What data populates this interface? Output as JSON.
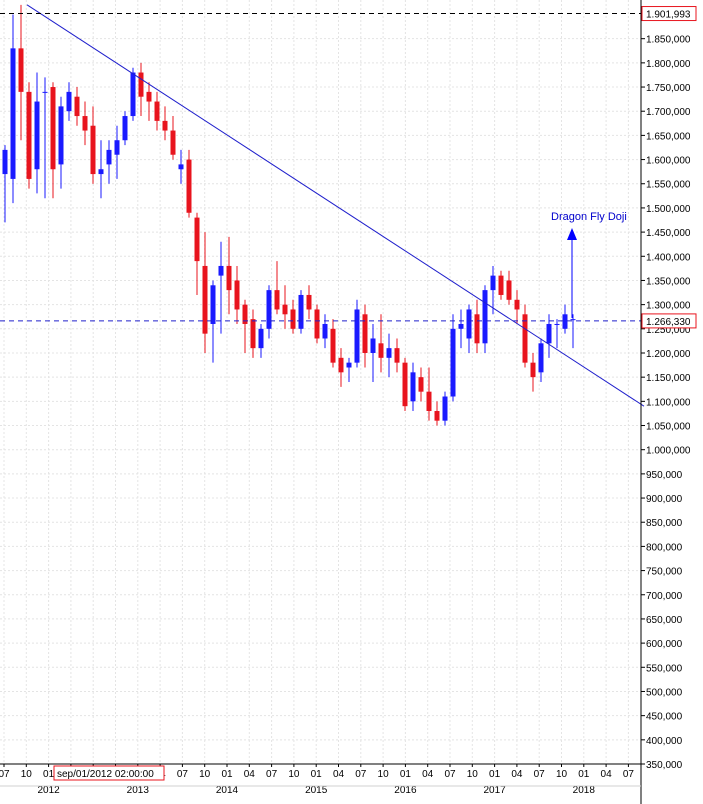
{
  "chart_data": {
    "type": "candlestick",
    "title": "",
    "xlabel": "",
    "ylabel": "",
    "ylim": [
      350000,
      1930000
    ],
    "y_ticks": [
      1850000,
      1800000,
      1750000,
      1700000,
      1650000,
      1600000,
      1550000,
      1500000,
      1450000,
      1400000,
      1350000,
      1300000,
      1250000,
      1200000,
      1150000,
      1100000,
      1050000,
      1000000,
      950000,
      900000,
      850000,
      800000,
      750000,
      700000,
      650000,
      600000,
      550000,
      500000,
      450000,
      400000,
      350000
    ],
    "y_tick_labels": [
      "1.850,000",
      "1.800,000",
      "1.750,000",
      "1.700,000",
      "1.650,000",
      "1.600,000",
      "1.550,000",
      "1.500,000",
      "1.450,000",
      "1.400,000",
      "1.350,000",
      "1.300,000",
      "1.250,000",
      "1.200,000",
      "1.150,000",
      "1.100,000",
      "1.050,000",
      "1.000,000",
      "950,000",
      "900,000",
      "850,000",
      "800,000",
      "750,000",
      "700,000",
      "650,000",
      "600,000",
      "550,000",
      "500,000",
      "450,000",
      "400,000",
      "350,000"
    ],
    "month_labels": [
      "07",
      "10",
      "01",
      "04",
      "07",
      "10",
      "01",
      "04",
      "07",
      "10",
      "01",
      "04",
      "07",
      "10",
      "01",
      "04",
      "07",
      "10",
      "01",
      "04",
      "07",
      "10",
      "01",
      "04",
      "07",
      "10",
      "01",
      "04",
      "07"
    ],
    "year_labels": [
      "2012",
      "2013",
      "2014",
      "2015",
      "2016",
      "2017",
      "2018"
    ],
    "cursor_date_label": "sep/01/2012 02:00:00",
    "grid": true,
    "up_color": "#1a1aff",
    "down_color": "#e8141e",
    "line_color": "#2020cc",
    "candles": [
      {
        "o": 1570000,
        "h": 1630000,
        "l": 1470000,
        "c": 1620000
      },
      {
        "o": 1560000,
        "h": 1900000,
        "l": 1510000,
        "c": 1830000
      },
      {
        "o": 1830000,
        "h": 1920000,
        "l": 1640000,
        "c": 1740000
      },
      {
        "o": 1740000,
        "h": 1760000,
        "l": 1540000,
        "c": 1560000
      },
      {
        "o": 1580000,
        "h": 1780000,
        "l": 1530000,
        "c": 1720000
      },
      {
        "o": 1740000,
        "h": 1770000,
        "l": 1520000,
        "c": 1740000
      },
      {
        "o": 1750000,
        "h": 1760000,
        "l": 1520000,
        "c": 1580000
      },
      {
        "o": 1590000,
        "h": 1730000,
        "l": 1540000,
        "c": 1710000
      },
      {
        "o": 1700000,
        "h": 1760000,
        "l": 1680000,
        "c": 1740000
      },
      {
        "o": 1730000,
        "h": 1750000,
        "l": 1670000,
        "c": 1690000
      },
      {
        "o": 1690000,
        "h": 1720000,
        "l": 1630000,
        "c": 1660000
      },
      {
        "o": 1670000,
        "h": 1710000,
        "l": 1550000,
        "c": 1570000
      },
      {
        "o": 1570000,
        "h": 1640000,
        "l": 1520000,
        "c": 1580000
      },
      {
        "o": 1590000,
        "h": 1640000,
        "l": 1550000,
        "c": 1620000
      },
      {
        "o": 1610000,
        "h": 1670000,
        "l": 1560000,
        "c": 1640000
      },
      {
        "o": 1640000,
        "h": 1700000,
        "l": 1630000,
        "c": 1690000
      },
      {
        "o": 1690000,
        "h": 1790000,
        "l": 1680000,
        "c": 1780000
      },
      {
        "o": 1780000,
        "h": 1800000,
        "l": 1690000,
        "c": 1730000
      },
      {
        "o": 1740000,
        "h": 1760000,
        "l": 1680000,
        "c": 1720000
      },
      {
        "o": 1720000,
        "h": 1740000,
        "l": 1660000,
        "c": 1680000
      },
      {
        "o": 1680000,
        "h": 1710000,
        "l": 1640000,
        "c": 1660000
      },
      {
        "o": 1660000,
        "h": 1690000,
        "l": 1600000,
        "c": 1610000
      },
      {
        "o": 1580000,
        "h": 1620000,
        "l": 1550000,
        "c": 1590000
      },
      {
        "o": 1600000,
        "h": 1620000,
        "l": 1480000,
        "c": 1490000
      },
      {
        "o": 1480000,
        "h": 1490000,
        "l": 1320000,
        "c": 1390000
      },
      {
        "o": 1380000,
        "h": 1450000,
        "l": 1200000,
        "c": 1240000
      },
      {
        "o": 1260000,
        "h": 1350000,
        "l": 1180000,
        "c": 1340000
      },
      {
        "o": 1360000,
        "h": 1430000,
        "l": 1240000,
        "c": 1380000
      },
      {
        "o": 1380000,
        "h": 1440000,
        "l": 1280000,
        "c": 1330000
      },
      {
        "o": 1350000,
        "h": 1380000,
        "l": 1260000,
        "c": 1290000
      },
      {
        "o": 1300000,
        "h": 1310000,
        "l": 1200000,
        "c": 1260000
      },
      {
        "o": 1270000,
        "h": 1290000,
        "l": 1190000,
        "c": 1210000
      },
      {
        "o": 1210000,
        "h": 1260000,
        "l": 1190000,
        "c": 1250000
      },
      {
        "o": 1250000,
        "h": 1340000,
        "l": 1230000,
        "c": 1330000
      },
      {
        "o": 1330000,
        "h": 1390000,
        "l": 1280000,
        "c": 1290000
      },
      {
        "o": 1300000,
        "h": 1340000,
        "l": 1250000,
        "c": 1280000
      },
      {
        "o": 1290000,
        "h": 1310000,
        "l": 1240000,
        "c": 1250000
      },
      {
        "o": 1250000,
        "h": 1330000,
        "l": 1240000,
        "c": 1320000
      },
      {
        "o": 1320000,
        "h": 1340000,
        "l": 1270000,
        "c": 1290000
      },
      {
        "o": 1290000,
        "h": 1300000,
        "l": 1220000,
        "c": 1230000
      },
      {
        "o": 1230000,
        "h": 1280000,
        "l": 1210000,
        "c": 1260000
      },
      {
        "o": 1250000,
        "h": 1270000,
        "l": 1170000,
        "c": 1180000
      },
      {
        "o": 1190000,
        "h": 1210000,
        "l": 1130000,
        "c": 1160000
      },
      {
        "o": 1170000,
        "h": 1190000,
        "l": 1140000,
        "c": 1180000
      },
      {
        "o": 1180000,
        "h": 1310000,
        "l": 1170000,
        "c": 1290000
      },
      {
        "o": 1280000,
        "h": 1300000,
        "l": 1170000,
        "c": 1200000
      },
      {
        "o": 1200000,
        "h": 1260000,
        "l": 1140000,
        "c": 1230000
      },
      {
        "o": 1220000,
        "h": 1280000,
        "l": 1160000,
        "c": 1190000
      },
      {
        "o": 1190000,
        "h": 1240000,
        "l": 1150000,
        "c": 1210000
      },
      {
        "o": 1210000,
        "h": 1230000,
        "l": 1160000,
        "c": 1180000
      },
      {
        "o": 1180000,
        "h": 1190000,
        "l": 1080000,
        "c": 1090000
      },
      {
        "o": 1100000,
        "h": 1180000,
        "l": 1080000,
        "c": 1160000
      },
      {
        "o": 1150000,
        "h": 1170000,
        "l": 1100000,
        "c": 1120000
      },
      {
        "o": 1120000,
        "h": 1170000,
        "l": 1060000,
        "c": 1080000
      },
      {
        "o": 1080000,
        "h": 1100000,
        "l": 1050000,
        "c": 1060000
      },
      {
        "o": 1060000,
        "h": 1120000,
        "l": 1050000,
        "c": 1110000
      },
      {
        "o": 1110000,
        "h": 1280000,
        "l": 1100000,
        "c": 1250000
      },
      {
        "o": 1250000,
        "h": 1290000,
        "l": 1210000,
        "c": 1260000
      },
      {
        "o": 1230000,
        "h": 1300000,
        "l": 1200000,
        "c": 1290000
      },
      {
        "o": 1280000,
        "h": 1310000,
        "l": 1200000,
        "c": 1220000
      },
      {
        "o": 1220000,
        "h": 1340000,
        "l": 1200000,
        "c": 1330000
      },
      {
        "o": 1330000,
        "h": 1380000,
        "l": 1280000,
        "c": 1360000
      },
      {
        "o": 1360000,
        "h": 1370000,
        "l": 1310000,
        "c": 1320000
      },
      {
        "o": 1350000,
        "h": 1370000,
        "l": 1300000,
        "c": 1310000
      },
      {
        "o": 1310000,
        "h": 1330000,
        "l": 1260000,
        "c": 1290000
      },
      {
        "o": 1280000,
        "h": 1300000,
        "l": 1170000,
        "c": 1180000
      },
      {
        "o": 1180000,
        "h": 1200000,
        "l": 1120000,
        "c": 1150000
      },
      {
        "o": 1160000,
        "h": 1230000,
        "l": 1140000,
        "c": 1220000
      },
      {
        "o": 1220000,
        "h": 1280000,
        "l": 1190000,
        "c": 1260000
      },
      {
        "o": 1260000,
        "h": 1270000,
        "l": 1210000,
        "c": 1260000
      },
      {
        "o": 1250000,
        "h": 1300000,
        "l": 1240000,
        "c": 1280000
      },
      {
        "o": 1270000,
        "h": 1280000,
        "l": 1210000,
        "c": 1270000
      }
    ],
    "lines": [
      {
        "name": "",
        "style": "solid",
        "x0": 0,
        "y0": 1920000,
        "x1": 75,
        "y1": 1090000
      },
      {
        "name": "",
        "style": "dashed",
        "y": 1901993
      },
      {
        "name": "",
        "style": "dashed",
        "y": 1266330
      }
    ],
    "price_boxes": [
      "1.901,993",
      "1.266,330"
    ],
    "annotations": [
      {
        "text": "Dragon Fly Doji",
        "candle_index": 71
      }
    ]
  }
}
